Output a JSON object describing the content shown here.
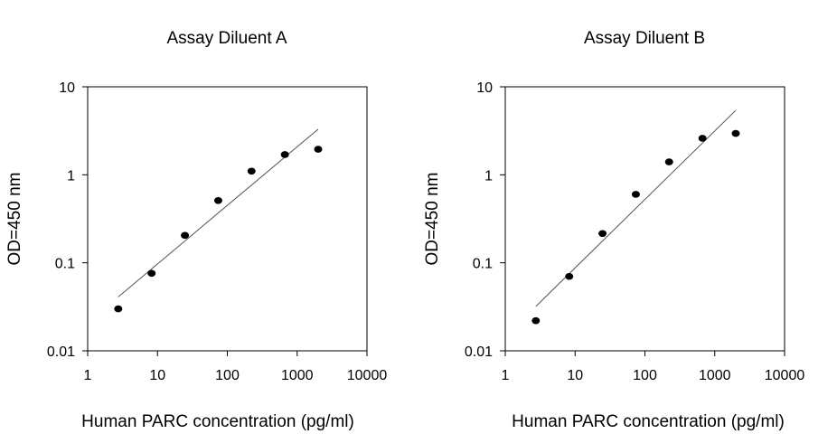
{
  "chart_data": [
    {
      "type": "scatter",
      "title": "Assay Diluent A",
      "xlabel": "Human PARC concentration (pg/ml)",
      "ylabel": "OD=450 nm",
      "xscale": "log",
      "yscale": "log",
      "xlim": [
        1,
        10000
      ],
      "ylim": [
        0.01,
        10
      ],
      "xticks": [
        "1",
        "10",
        "100",
        "1000",
        "10000"
      ],
      "yticks": [
        "0.01",
        "0.1",
        "1",
        "10"
      ],
      "grid": false,
      "x": [
        2.74,
        8.23,
        24.7,
        74.1,
        222,
        667,
        2000
      ],
      "y": [
        0.03,
        0.076,
        0.205,
        0.51,
        1.1,
        1.7,
        1.95
      ],
      "fit_line": {
        "x": [
          2.74,
          2000
        ],
        "y": [
          0.041,
          3.3
        ]
      }
    },
    {
      "type": "scatter",
      "title": "Assay Diluent B",
      "xlabel": "Human PARC concentration (pg/ml)",
      "ylabel": "OD=450 nm",
      "xscale": "log",
      "yscale": "log",
      "xlim": [
        1,
        10000
      ],
      "ylim": [
        0.01,
        10
      ],
      "xticks": [
        "1",
        "10",
        "100",
        "1000",
        "10000"
      ],
      "yticks": [
        "0.01",
        "0.1",
        "1",
        "10"
      ],
      "grid": false,
      "x": [
        2.74,
        8.23,
        24.7,
        74.1,
        222,
        667,
        2000
      ],
      "y": [
        0.022,
        0.07,
        0.215,
        0.6,
        1.4,
        2.6,
        2.95
      ],
      "fit_line": {
        "x": [
          2.74,
          2000
        ],
        "y": [
          0.032,
          5.4
        ]
      }
    }
  ]
}
